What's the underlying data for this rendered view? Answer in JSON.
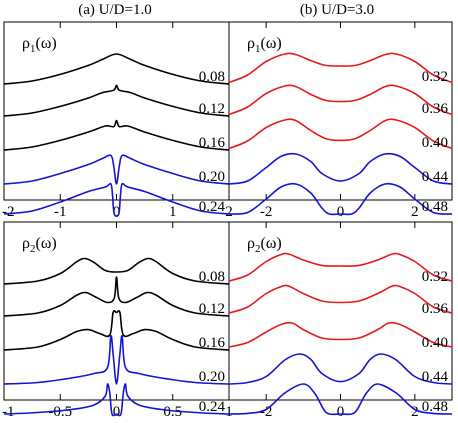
{
  "chart_data": [
    {
      "type": "line",
      "column_title": "(a) U/D=1.0",
      "panel_label": "ρ1(ω)",
      "xlim": [
        -2,
        2
      ],
      "xticks": [
        "-2",
        "-1",
        "0",
        "1",
        "2"
      ],
      "series": [
        {
          "name": "0.08",
          "color": "#000000",
          "x": [
            -2,
            -1.5,
            -1,
            -0.5,
            -0.25,
            0,
            0.25,
            0.5,
            1,
            1.5,
            2
          ],
          "y": [
            0.0,
            0.1,
            0.32,
            0.62,
            0.82,
            1.0,
            0.82,
            0.62,
            0.32,
            0.1,
            0.0
          ]
        },
        {
          "name": "0.12",
          "color": "#000000",
          "x": [
            -2,
            -1.5,
            -1,
            -0.5,
            -0.25,
            -0.05,
            0,
            0.05,
            0.25,
            0.5,
            1,
            1.5,
            2
          ],
          "y": [
            0.0,
            0.1,
            0.32,
            0.6,
            0.78,
            0.86,
            1.02,
            0.86,
            0.78,
            0.6,
            0.32,
            0.1,
            0.0
          ]
        },
        {
          "name": "0.16",
          "color": "#000000",
          "x": [
            -2,
            -1.5,
            -1,
            -0.5,
            -0.2,
            -0.05,
            0,
            0.05,
            0.2,
            0.5,
            1,
            1.5,
            2
          ],
          "y": [
            0.0,
            0.1,
            0.32,
            0.6,
            0.8,
            0.78,
            0.98,
            0.78,
            0.8,
            0.6,
            0.32,
            0.1,
            0.0
          ]
        },
        {
          "name": "0.20",
          "color": "#1414d6",
          "x": [
            -2,
            -1.5,
            -1,
            -0.5,
            -0.25,
            -0.1,
            -0.05,
            0,
            0.05,
            0.1,
            0.25,
            0.5,
            1,
            1.5,
            2
          ],
          "y": [
            0.0,
            0.1,
            0.35,
            0.65,
            0.85,
            0.95,
            0.6,
            0.0,
            0.6,
            0.95,
            0.85,
            0.65,
            0.35,
            0.1,
            0.0
          ]
        },
        {
          "name": "0.24",
          "color": "#1414d6",
          "x": [
            -2,
            -1.5,
            -1,
            -0.5,
            -0.2,
            -0.1,
            -0.07,
            -0.04,
            0.04,
            0.07,
            0.1,
            0.2,
            0.5,
            1,
            1.5,
            2
          ],
          "y": [
            0.0,
            0.1,
            0.4,
            0.75,
            0.9,
            1.0,
            0.6,
            0.0,
            0.0,
            0.6,
            1.0,
            0.9,
            0.75,
            0.4,
            0.1,
            0.0
          ]
        }
      ]
    },
    {
      "type": "line",
      "column_title": "(b) U/D=3.0",
      "panel_label": "ρ1(ω)",
      "xlim": [
        -3,
        3
      ],
      "xticks": [
        "-2",
        "0",
        "2"
      ],
      "series": [
        {
          "name": "0.32",
          "color": "#e61a1a",
          "x": [
            -3,
            -2.5,
            -2,
            -1.5,
            -1.2,
            -0.8,
            -0.4,
            0,
            0.4,
            0.8,
            1.2,
            1.5,
            2,
            2.5,
            3
          ],
          "y": [
            0.05,
            0.3,
            0.75,
            1.0,
            0.98,
            0.78,
            0.62,
            0.6,
            0.62,
            0.78,
            0.98,
            1.0,
            0.75,
            0.3,
            0.05
          ]
        },
        {
          "name": "0.36",
          "color": "#e61a1a",
          "x": [
            -3,
            -2.5,
            -2,
            -1.5,
            -1.2,
            -0.8,
            -0.4,
            0,
            0.4,
            0.8,
            1.2,
            1.5,
            2,
            2.5,
            3
          ],
          "y": [
            0.05,
            0.3,
            0.75,
            1.0,
            0.98,
            0.72,
            0.52,
            0.48,
            0.52,
            0.72,
            0.98,
            1.0,
            0.75,
            0.3,
            0.05
          ]
        },
        {
          "name": "0.40",
          "color": "#e61a1a",
          "x": [
            -3,
            -2.5,
            -2,
            -1.5,
            -1.2,
            -0.8,
            -0.4,
            0,
            0.4,
            0.8,
            1.2,
            1.5,
            2,
            2.5,
            3
          ],
          "y": [
            0.05,
            0.3,
            0.75,
            1.0,
            0.98,
            0.65,
            0.38,
            0.32,
            0.38,
            0.65,
            0.98,
            1.0,
            0.75,
            0.3,
            0.05
          ]
        },
        {
          "name": "0.44",
          "color": "#1414d6",
          "x": [
            -3,
            -2.5,
            -2,
            -1.6,
            -1.2,
            -0.8,
            -0.5,
            0,
            0.5,
            0.8,
            1.2,
            1.6,
            2,
            2.5,
            3
          ],
          "y": [
            0.0,
            0.1,
            0.55,
            0.92,
            1.0,
            0.75,
            0.35,
            0.1,
            0.35,
            0.75,
            1.0,
            0.92,
            0.55,
            0.1,
            0.0
          ]
        },
        {
          "name": "0.48",
          "color": "#1414d6",
          "x": [
            -3,
            -2.5,
            -2,
            -1.6,
            -1.2,
            -0.8,
            -0.5,
            -0.3,
            0,
            0.3,
            0.5,
            0.8,
            1.2,
            1.6,
            2,
            2.5,
            3
          ],
          "y": [
            0.0,
            0.05,
            0.5,
            0.9,
            1.0,
            0.7,
            0.2,
            0.0,
            0.0,
            0.0,
            0.2,
            0.7,
            1.0,
            0.9,
            0.5,
            0.05,
            0.0
          ]
        }
      ]
    },
    {
      "type": "line",
      "column_title": "",
      "panel_label": "ρ2(ω)",
      "xlim": [
        -1,
        1
      ],
      "xticks": [
        "-1",
        "-0.5",
        "0",
        "0.5",
        "1"
      ],
      "series": [
        {
          "name": "0.08",
          "color": "#000000",
          "x": [
            -1,
            -0.7,
            -0.5,
            -0.35,
            -0.28,
            -0.2,
            -0.1,
            0,
            0.1,
            0.2,
            0.28,
            0.35,
            0.5,
            0.7,
            1
          ],
          "y": [
            0.0,
            0.1,
            0.35,
            0.75,
            0.85,
            0.72,
            0.45,
            0.4,
            0.45,
            0.72,
            0.85,
            0.75,
            0.35,
            0.1,
            0.0
          ]
        },
        {
          "name": "0.12",
          "color": "#000000",
          "x": [
            -1,
            -0.7,
            -0.5,
            -0.35,
            -0.27,
            -0.18,
            -0.08,
            -0.02,
            0,
            0.02,
            0.08,
            0.18,
            0.27,
            0.35,
            0.5,
            0.7,
            1
          ],
          "y": [
            0.0,
            0.1,
            0.35,
            0.7,
            0.78,
            0.62,
            0.45,
            0.6,
            1.3,
            0.6,
            0.45,
            0.62,
            0.78,
            0.7,
            0.35,
            0.1,
            0.0
          ]
        },
        {
          "name": "0.16",
          "color": "#000000",
          "x": [
            -1,
            -0.7,
            -0.5,
            -0.35,
            -0.25,
            -0.15,
            -0.06,
            -0.03,
            0,
            0.03,
            0.06,
            0.15,
            0.25,
            0.35,
            0.5,
            0.7,
            1
          ],
          "y": [
            0.0,
            0.1,
            0.35,
            0.62,
            0.68,
            0.55,
            0.5,
            1.25,
            1.25,
            1.25,
            0.5,
            0.55,
            0.68,
            0.62,
            0.35,
            0.1,
            0.0
          ]
        },
        {
          "name": "0.20",
          "color": "#1414d6",
          "x": [
            -1,
            -0.7,
            -0.4,
            -0.2,
            -0.08,
            -0.05,
            -0.03,
            0,
            0.03,
            0.05,
            0.08,
            0.2,
            0.4,
            0.7,
            1
          ],
          "y": [
            0.0,
            0.05,
            0.2,
            0.35,
            0.55,
            1.6,
            1.0,
            0.0,
            1.0,
            1.6,
            0.55,
            0.35,
            0.2,
            0.05,
            0.0
          ]
        },
        {
          "name": "0.24",
          "color": "#1414d6",
          "x": [
            -1,
            -0.7,
            -0.4,
            -0.2,
            -0.1,
            -0.08,
            -0.06,
            -0.04,
            0,
            0.04,
            0.06,
            0.08,
            0.1,
            0.2,
            0.4,
            0.7,
            1
          ],
          "y": [
            0.0,
            0.05,
            0.15,
            0.3,
            0.6,
            1.0,
            0.7,
            0.0,
            0.0,
            0.0,
            0.7,
            1.0,
            0.6,
            0.3,
            0.15,
            0.05,
            0.0
          ]
        }
      ]
    },
    {
      "type": "line",
      "column_title": "",
      "panel_label": "ρ2(ω)",
      "xlim": [
        -3,
        3
      ],
      "xticks": [
        "-2",
        "0",
        "2"
      ],
      "series": [
        {
          "name": "0.32",
          "color": "#e61a1a",
          "x": [
            -3,
            -2.5,
            -2,
            -1.6,
            -1.4,
            -1.0,
            -0.5,
            0,
            0.5,
            1.0,
            1.4,
            1.6,
            2,
            2.5,
            3
          ],
          "y": [
            0.1,
            0.3,
            0.75,
            0.98,
            1.0,
            0.8,
            0.62,
            0.6,
            0.62,
            0.8,
            1.0,
            0.98,
            0.75,
            0.3,
            0.1
          ]
        },
        {
          "name": "0.36",
          "color": "#e61a1a",
          "x": [
            -3,
            -2.5,
            -2,
            -1.6,
            -1.4,
            -1.0,
            -0.5,
            0,
            0.5,
            1.0,
            1.4,
            1.6,
            2,
            2.5,
            3
          ],
          "y": [
            0.1,
            0.3,
            0.75,
            0.98,
            1.0,
            0.75,
            0.5,
            0.45,
            0.5,
            0.75,
            1.0,
            0.98,
            0.75,
            0.3,
            0.1
          ]
        },
        {
          "name": "0.40",
          "color": "#e61a1a",
          "x": [
            -3,
            -2.5,
            -2,
            -1.6,
            -1.3,
            -1.0,
            -0.5,
            0,
            0.5,
            1.0,
            1.3,
            1.6,
            2,
            2.5,
            3
          ],
          "y": [
            0.1,
            0.25,
            0.6,
            0.85,
            0.9,
            0.68,
            0.4,
            0.35,
            0.4,
            0.68,
            0.9,
            0.85,
            0.6,
            0.25,
            0.1
          ]
        },
        {
          "name": "0.44",
          "color": "#1414d6",
          "x": [
            -3,
            -2.5,
            -2,
            -1.5,
            -1.1,
            -0.8,
            -0.5,
            0,
            0.5,
            0.8,
            1.1,
            1.5,
            2,
            2.5,
            3
          ],
          "y": [
            0.0,
            0.05,
            0.25,
            0.8,
            1.0,
            0.82,
            0.35,
            0.08,
            0.35,
            0.82,
            1.0,
            0.8,
            0.25,
            0.05,
            0.0
          ]
        },
        {
          "name": "0.48",
          "color": "#1414d6",
          "x": [
            -3,
            -2.5,
            -2,
            -1.5,
            -1.0,
            -0.7,
            -0.45,
            -0.3,
            0,
            0.3,
            0.45,
            0.7,
            1.0,
            1.5,
            2,
            2.5,
            3
          ],
          "y": [
            0.0,
            0.02,
            0.15,
            0.7,
            1.0,
            0.7,
            0.15,
            0.0,
            0.0,
            0.0,
            0.15,
            0.7,
            1.0,
            0.7,
            0.15,
            0.02,
            0.0
          ]
        }
      ]
    }
  ]
}
